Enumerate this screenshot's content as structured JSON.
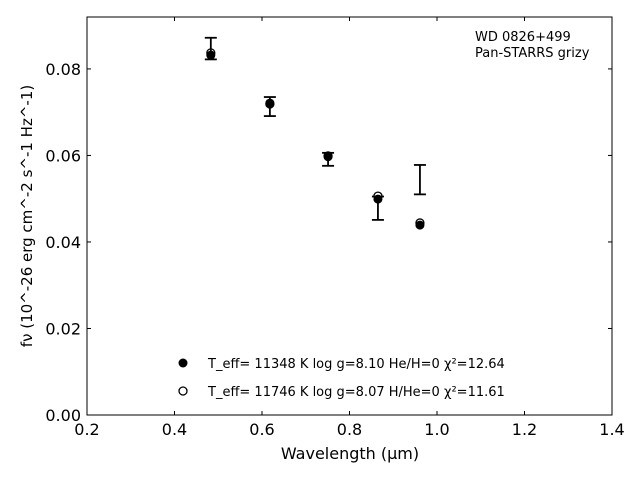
{
  "chart_data": {
    "type": "scatter",
    "title": "",
    "annotation": [
      "WD 0826+499",
      "Pan-STARRS grizy"
    ],
    "xlabel": "Wavelength (μm)",
    "ylabel": "fν (10^-26 erg cm^-2 s^-1 Hz^-1)",
    "xlim": [
      0.2,
      1.4
    ],
    "ylim": [
      0.0,
      0.092
    ],
    "xticks": [
      "0.2",
      "0.4",
      "0.6",
      "0.8",
      "1.0",
      "1.2",
      "1.4"
    ],
    "yticks": [
      "0.00",
      "0.02",
      "0.04",
      "0.06",
      "0.08"
    ],
    "xtick_values": [
      0.2,
      0.4,
      0.6,
      0.8,
      1.0,
      1.2,
      1.4
    ],
    "ytick_values": [
      0.0,
      0.02,
      0.04,
      0.06,
      0.08
    ],
    "grid": false,
    "legend_placement": "bottom-center",
    "observed": {
      "name": "Pan-STARRS grizy",
      "x": [
        0.483,
        0.618,
        0.751,
        0.865,
        0.961
      ],
      "y": [
        0.0847,
        0.0713,
        0.0591,
        0.0478,
        0.0544
      ],
      "err": [
        0.0025,
        0.0022,
        0.0015,
        0.0027,
        0.0034
      ]
    },
    "series": [
      {
        "name": "T_eff= 11348 K  log g=8.10  He/H=0  χ²=12.64",
        "marker": "filled",
        "teff": "11348 K",
        "logg": "log g=8.10",
        "comp": "He/H=0",
        "chi": "=12.64",
        "x": [
          0.483,
          0.618,
          0.751,
          0.865,
          0.961
        ],
        "y": [
          0.0832,
          0.0721,
          0.0597,
          0.0499,
          0.0439
        ]
      },
      {
        "name": "T_eff= 11746 K  log g=8.07  H/He=0  χ²=11.61",
        "marker": "open",
        "teff": "11746 K",
        "logg": "log g=8.07",
        "comp": "H/He=0",
        "chi": "=11.61",
        "x": [
          0.483,
          0.618,
          0.751,
          0.865,
          0.961
        ],
        "y": [
          0.0837,
          0.0719,
          0.0599,
          0.0506,
          0.0444
        ]
      }
    ]
  }
}
